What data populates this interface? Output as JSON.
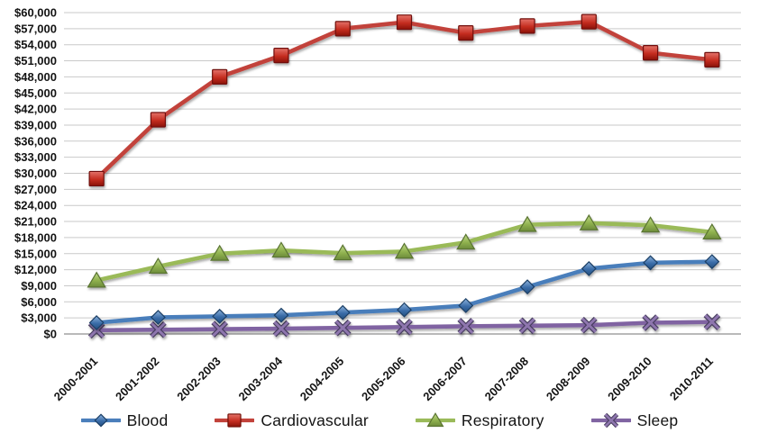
{
  "chart_data": {
    "type": "line",
    "title": "",
    "xlabel": "",
    "ylabel": "",
    "grid": true,
    "legend_position": "bottom",
    "ylim": [
      0,
      60000
    ],
    "ystep": 3000,
    "ytick_labels": [
      "$60,000",
      "$57,000",
      "$54,000",
      "$51,000",
      "$48,000",
      "$45,000",
      "$42,000",
      "$39,000",
      "$36,000",
      "$33,000",
      "$30,000",
      "$27,000",
      "$24,000",
      "$21,000",
      "$18,000",
      "$15,000",
      "$12,000",
      "$9,000",
      "$6,000",
      "$3,000",
      "$0"
    ],
    "categories": [
      "2000-2001",
      "2001-2002",
      "2002-2003",
      "2003-2004",
      "2004-2005",
      "2005-2006",
      "2006-2007",
      "2007-2008",
      "2008-2009",
      "2009-2010",
      "2010-2011"
    ],
    "series": [
      {
        "name": "Blood",
        "marker": "diamond",
        "color": "#4a7ebb",
        "marker_colors": {
          "light": "#8fb4dd",
          "mid": "#3a6ca8",
          "dark": "#24507f",
          "stroke": "#1c3f66"
        },
        "values": [
          2100,
          3100,
          3300,
          3500,
          4000,
          4500,
          5300,
          8800,
          12200,
          13300,
          13500
        ]
      },
      {
        "name": "Cardiovascular",
        "marker": "square",
        "color": "#c2423a",
        "marker_colors": {
          "light": "#e4736a",
          "mid": "#c52d20",
          "dark": "#8a1208",
          "stroke": "#701108"
        },
        "values": [
          29000,
          40000,
          48000,
          52000,
          57000,
          58200,
          56200,
          57500,
          58300,
          52500,
          51200
        ]
      },
      {
        "name": "Respiratory",
        "marker": "triangle",
        "color": "#9aba59",
        "marker_colors": {
          "light": "#c0d98a",
          "mid": "#8fb14e",
          "dark": "#6d8c3b",
          "stroke": "#5a7430"
        },
        "values": [
          10000,
          12600,
          15000,
          15600,
          15100,
          15400,
          17100,
          20400,
          20700,
          20300,
          19000
        ]
      },
      {
        "name": "Sleep",
        "marker": "x",
        "color": "#8064a2",
        "marker_colors": {
          "light": "#a58cc0",
          "mid": "#8e76ae",
          "dark": "#5c4d79",
          "stroke": "#473d5e"
        },
        "values": [
          700,
          800,
          900,
          1000,
          1150,
          1300,
          1450,
          1550,
          1650,
          2100,
          2250
        ]
      }
    ],
    "axis_colors": {
      "gridline": "#c9c9c9",
      "zero_line": "#8f8f8f",
      "tick_text": "#141414"
    }
  }
}
